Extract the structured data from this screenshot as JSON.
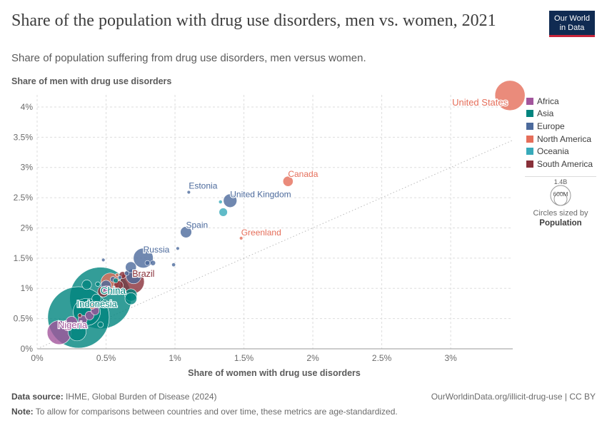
{
  "header": {
    "title": "Share of the population with drug use disorders, men vs. women, 2021",
    "subtitle": "Share of population suffering from drug use disorders, men versus women."
  },
  "logo": {
    "line1": "Our World",
    "line2": "in Data"
  },
  "legend": {
    "items": [
      {
        "label": "Africa",
        "color": "#a2559c"
      },
      {
        "label": "Asia",
        "color": "#00847e"
      },
      {
        "label": "Europe",
        "color": "#4c6a9c"
      },
      {
        "label": "North America",
        "color": "#e56e5a"
      },
      {
        "label": "Oceania",
        "color": "#38aaba"
      },
      {
        "label": "South America",
        "color": "#883039"
      }
    ],
    "size_large": "1.4B",
    "size_small": "600M",
    "size_note_line1": "Circles sized by",
    "size_note_line2": "Population"
  },
  "footer": {
    "source_label": "Data source:",
    "source_text": "IHME, Global Burden of Disease (2024)",
    "url": "OurWorldinData.org/illicit-drug-use | CC BY",
    "note_label": "Note:",
    "note_text": "To allow for comparisons between countries and over time, these metrics are age-standardized."
  },
  "chart_data": {
    "type": "scatter",
    "xlabel": "Share of women with drug use disorders",
    "ylabel": "Share of men with drug use disorders",
    "xlim": [
      0,
      3.45
    ],
    "ylim": [
      0,
      4.2
    ],
    "x_ticks": [
      0,
      0.5,
      1,
      1.5,
      2,
      2.5,
      3
    ],
    "x_tick_labels": [
      "0%",
      "0.5%",
      "1%",
      "1.5%",
      "2%",
      "2.5%",
      "3%"
    ],
    "y_ticks": [
      0,
      0.5,
      1,
      1.5,
      2,
      2.5,
      3,
      3.5,
      4
    ],
    "y_tick_labels": [
      "0%",
      "0.5%",
      "1%",
      "1.5%",
      "2%",
      "2.5%",
      "3%",
      "3.5%",
      "4%"
    ],
    "reference_line": "y = x",
    "grid": true,
    "points": [
      {
        "label": "United States",
        "region": "North America",
        "x": 3.43,
        "y": 4.19,
        "pop": 336
      },
      {
        "label": "Canada",
        "region": "North America",
        "x": 1.82,
        "y": 2.77,
        "pop": 38
      },
      {
        "label": "United Kingdom",
        "region": "Europe",
        "x": 1.4,
        "y": 2.45,
        "pop": 67
      },
      {
        "label": "Estonia",
        "region": "Europe",
        "x": 1.1,
        "y": 2.59,
        "pop": 1.3
      },
      {
        "label": "Spain",
        "region": "Europe",
        "x": 1.08,
        "y": 1.93,
        "pop": 47
      },
      {
        "label": "Greenland",
        "region": "North America",
        "x": 1.48,
        "y": 1.83,
        "pop": 0.06
      },
      {
        "label": "Russia",
        "region": "Europe",
        "x": 0.77,
        "y": 1.5,
        "pop": 145
      },
      {
        "label": "Brazil",
        "region": "South America",
        "x": 0.69,
        "y": 1.11,
        "pop": 214
      },
      {
        "label": "China",
        "region": "Asia",
        "x": 0.46,
        "y": 0.84,
        "pop": 1410
      },
      {
        "label": "Indonesia",
        "region": "Asia",
        "x": 0.36,
        "y": 0.61,
        "pop": 274
      },
      {
        "label": "Nigeria",
        "region": "Africa",
        "x": 0.16,
        "y": 0.27,
        "pop": 213
      },
      {
        "label": "",
        "region": "Asia",
        "x": 0.3,
        "y": 0.52,
        "pop": 1400
      },
      {
        "label": "",
        "region": "Oceania",
        "x": 1.33,
        "y": 2.43,
        "pop": 5
      },
      {
        "label": "",
        "region": "Oceania",
        "x": 1.35,
        "y": 2.26,
        "pop": 26
      },
      {
        "label": "",
        "region": "Europe",
        "x": 1.02,
        "y": 1.66,
        "pop": 2.8
      },
      {
        "label": "",
        "region": "Europe",
        "x": 0.99,
        "y": 1.39,
        "pop": 5.4
      },
      {
        "label": "",
        "region": "Europe",
        "x": 0.84,
        "y": 1.42,
        "pop": 10
      },
      {
        "label": "",
        "region": "Europe",
        "x": 0.8,
        "y": 1.42,
        "pop": 9
      },
      {
        "label": "",
        "region": "Europe",
        "x": 0.68,
        "y": 1.35,
        "pop": 44
      },
      {
        "label": "",
        "region": "Europe",
        "x": 0.65,
        "y": 1.25,
        "pop": 8
      },
      {
        "label": "",
        "region": "Europe",
        "x": 0.7,
        "y": 1.2,
        "pop": 83
      },
      {
        "label": "",
        "region": "Europe",
        "x": 0.6,
        "y": 1.18,
        "pop": 5
      },
      {
        "label": "",
        "region": "Europe",
        "x": 0.55,
        "y": 1.15,
        "pop": 11
      },
      {
        "label": "",
        "region": "Europe",
        "x": 0.5,
        "y": 1.05,
        "pop": 38
      },
      {
        "label": "",
        "region": "Europe",
        "x": 0.48,
        "y": 1.47,
        "pop": 2
      },
      {
        "label": "",
        "region": "South America",
        "x": 0.62,
        "y": 1.22,
        "pop": 18
      },
      {
        "label": "",
        "region": "South America",
        "x": 0.59,
        "y": 1.05,
        "pop": 33
      },
      {
        "label": "",
        "region": "South America",
        "x": 0.48,
        "y": 0.95,
        "pop": 46
      },
      {
        "label": "",
        "region": "North America",
        "x": 0.58,
        "y": 1.22,
        "pop": 4
      },
      {
        "label": "",
        "region": "North America",
        "x": 0.53,
        "y": 1.1,
        "pop": 128
      },
      {
        "label": "",
        "region": "North America",
        "x": 0.4,
        "y": 0.7,
        "pop": 11
      },
      {
        "label": "",
        "region": "Asia",
        "x": 0.36,
        "y": 1.06,
        "pop": 34
      },
      {
        "label": "",
        "region": "Asia",
        "x": 0.44,
        "y": 1.07,
        "pop": 8
      },
      {
        "label": "",
        "region": "Asia",
        "x": 0.57,
        "y": 1.13,
        "pop": 9
      },
      {
        "label": "",
        "region": "Asia",
        "x": 0.68,
        "y": 0.89,
        "pop": 56
      },
      {
        "label": "",
        "region": "Asia",
        "x": 0.68,
        "y": 0.83,
        "pop": 52
      },
      {
        "label": "",
        "region": "Asia",
        "x": 0.43,
        "y": 0.83,
        "pop": 30
      },
      {
        "label": "",
        "region": "Asia",
        "x": 0.49,
        "y": 0.74,
        "pop": 25
      },
      {
        "label": "",
        "region": "Asia",
        "x": 0.46,
        "y": 0.4,
        "pop": 12
      },
      {
        "label": "",
        "region": "Asia",
        "x": 0.29,
        "y": 0.28,
        "pop": 120
      },
      {
        "label": "",
        "region": "Africa",
        "x": 0.25,
        "y": 0.44,
        "pop": 50
      },
      {
        "label": "",
        "region": "Africa",
        "x": 0.33,
        "y": 0.48,
        "pop": 30
      },
      {
        "label": "",
        "region": "Africa",
        "x": 0.38,
        "y": 0.55,
        "pop": 28
      },
      {
        "label": "",
        "region": "Africa",
        "x": 0.22,
        "y": 0.36,
        "pop": 20
      },
      {
        "label": "",
        "region": "Africa",
        "x": 0.42,
        "y": 0.63,
        "pop": 25
      },
      {
        "label": "",
        "region": "Africa",
        "x": 0.5,
        "y": 0.99,
        "pop": 15
      },
      {
        "label": "",
        "region": "South America",
        "x": 0.31,
        "y": 0.55,
        "pop": 6
      }
    ]
  }
}
